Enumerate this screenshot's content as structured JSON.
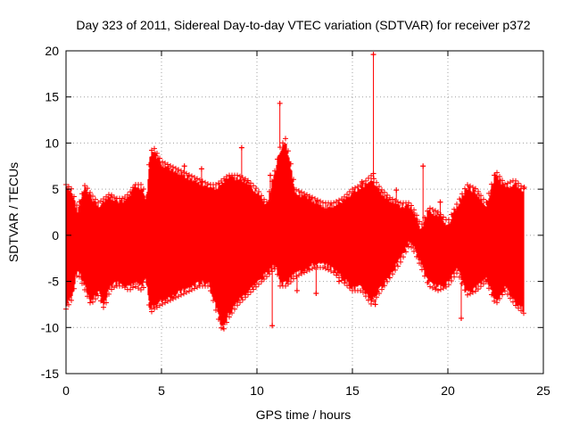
{
  "chart_data": {
    "type": "scatter",
    "title": "Day 323 of 2011, Sidereal Day-to-day VTEC variation (SDTVAR) for receiver p372",
    "xlabel": "GPS time / hours",
    "ylabel": "SDTVAR / TECUs",
    "xlim": [
      0,
      25
    ],
    "ylim": [
      -15,
      20
    ],
    "xticks": [
      0,
      5,
      10,
      15,
      20,
      25
    ],
    "yticks": [
      -15,
      -10,
      -5,
      0,
      5,
      10,
      15,
      20
    ],
    "xtick_labels": [
      "0",
      "5",
      "10",
      "15",
      "20",
      "25"
    ],
    "ytick_labels": [
      "-15",
      "-10",
      "-5",
      "0",
      "5",
      "10",
      "15",
      "20"
    ],
    "grid": true,
    "series": [
      {
        "name": "SDTVAR",
        "color": "#ff0000",
        "marker": "+",
        "envelope": {
          "x": [
            0.0,
            0.3,
            0.6,
            1.0,
            1.3,
            1.7,
            2.0,
            2.3,
            2.6,
            3.0,
            3.3,
            3.6,
            4.0,
            4.2,
            4.4,
            4.6,
            5.0,
            5.5,
            6.0,
            6.5,
            7.0,
            7.5,
            7.9,
            8.2,
            8.5,
            9.0,
            9.5,
            10.0,
            10.5,
            11.0,
            11.2,
            11.5,
            11.8,
            12.0,
            12.5,
            13.0,
            13.5,
            14.0,
            14.5,
            15.0,
            15.5,
            16.0,
            16.5,
            17.0,
            17.5,
            18.0,
            18.3,
            18.6,
            19.0,
            19.5,
            20.0,
            20.5,
            21.0,
            21.5,
            22.0,
            22.5,
            23.0,
            23.5,
            24.0
          ],
          "upper": [
            5.5,
            5.0,
            3.0,
            5.5,
            4.5,
            3.5,
            4.0,
            4.5,
            4.0,
            4.0,
            4.5,
            5.5,
            5.5,
            4.0,
            9.0,
            9.5,
            8.0,
            7.5,
            7.0,
            6.5,
            6.0,
            5.5,
            5.5,
            6.0,
            6.5,
            6.5,
            6.0,
            5.0,
            3.5,
            7.5,
            9.5,
            10.5,
            7.5,
            5.0,
            4.5,
            4.0,
            3.5,
            3.5,
            4.0,
            5.0,
            5.5,
            6.5,
            5.0,
            4.0,
            3.5,
            3.5,
            2.5,
            1.0,
            3.0,
            2.5,
            1.5,
            3.5,
            5.5,
            5.0,
            3.5,
            7.0,
            5.5,
            6.0,
            5.0
          ],
          "lower": [
            -8.0,
            -7.0,
            -4.0,
            -6.0,
            -7.5,
            -6.5,
            -8.0,
            -6.0,
            -5.5,
            -5.5,
            -6.0,
            -5.5,
            -6.0,
            -5.0,
            -8.5,
            -8.0,
            -7.5,
            -7.0,
            -6.5,
            -6.0,
            -5.5,
            -5.5,
            -8.5,
            -10.5,
            -9.0,
            -7.5,
            -6.5,
            -5.5,
            -4.5,
            -3.5,
            -5.5,
            -5.5,
            -5.0,
            -4.5,
            -4.0,
            -3.5,
            -3.5,
            -4.0,
            -5.0,
            -6.0,
            -6.0,
            -7.5,
            -6.0,
            -4.5,
            -3.0,
            -1.0,
            -2.0,
            -3.5,
            -5.5,
            -6.0,
            -5.5,
            -4.0,
            -6.5,
            -6.0,
            -5.0,
            -7.5,
            -6.0,
            -7.5,
            -8.5
          ]
        },
        "outliers": [
          {
            "x": 16.1,
            "y": 19.6
          },
          {
            "x": 11.2,
            "y": 14.3
          },
          {
            "x": 9.2,
            "y": 9.5
          },
          {
            "x": 6.2,
            "y": 7.5
          },
          {
            "x": 7.1,
            "y": 7.2
          },
          {
            "x": 10.7,
            "y": 6.5
          },
          {
            "x": 10.8,
            "y": -9.8
          },
          {
            "x": 13.1,
            "y": -6.3
          },
          {
            "x": 14.3,
            "y": -5.0
          },
          {
            "x": 15.0,
            "y": -5.5
          },
          {
            "x": 15.5,
            "y": 5.8
          },
          {
            "x": 16.1,
            "y": 6.7
          },
          {
            "x": 16.2,
            "y": -7.5
          },
          {
            "x": 17.3,
            "y": 4.9
          },
          {
            "x": 18.7,
            "y": 7.5
          },
          {
            "x": 19.6,
            "y": 3.6
          },
          {
            "x": 20.7,
            "y": -9.0
          },
          {
            "x": 24.0,
            "y": 5.2
          },
          {
            "x": 12.1,
            "y": -6.0
          }
        ]
      }
    ]
  }
}
